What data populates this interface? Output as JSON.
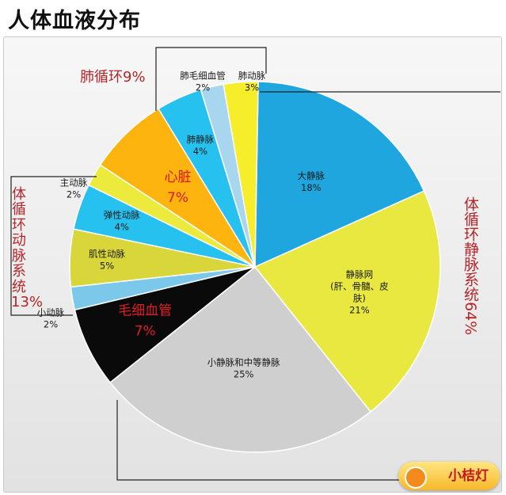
{
  "title": "人体血液分布",
  "groups": {
    "pulmonary": "肺循环9%",
    "arterial": "体循环动脉系统13%",
    "venous": "体循环静脉系统64%"
  },
  "logo_text": "小桔灯",
  "chart_data": {
    "type": "pie",
    "title": "人体血液分布",
    "slices": [
      {
        "label": "大静脉",
        "value": 18,
        "display": "18%",
        "color": "#1fa6df"
      },
      {
        "label": "静脉网",
        "note": "(肝、骨髓、皮肤)",
        "value": 21,
        "display": "21%",
        "color": "#e8e840"
      },
      {
        "label": "小静脉和中等静脉",
        "value": 25,
        "display": "25%",
        "color": "#cfcfcf"
      },
      {
        "label": "毛细血管",
        "value": 7,
        "display": "7%",
        "color": "#0a0a0a"
      },
      {
        "label": "小动脉",
        "value": 2,
        "display": "2%",
        "color": "#7cc8ea"
      },
      {
        "label": "肌性动脉",
        "value": 5,
        "display": "5%",
        "color": "#d8d63a"
      },
      {
        "label": "弹性动脉",
        "value": 4,
        "display": "4%",
        "color": "#27c1ef"
      },
      {
        "label": "主动脉",
        "value": 2,
        "display": "2%",
        "color": "#ecea3c"
      },
      {
        "label": "心脏",
        "value": 7,
        "display": "7%",
        "color": "#fdb40e"
      },
      {
        "label": "肺静脉",
        "value": 4,
        "display": "4%",
        "color": "#27c1ef"
      },
      {
        "label": "肺毛细血管",
        "value": 2,
        "display": "2%",
        "color": "#a8d6ee"
      },
      {
        "label": "肺动脉",
        "value": 3,
        "display": "3%",
        "color": "#f6ee2a"
      }
    ],
    "legend": "none"
  }
}
